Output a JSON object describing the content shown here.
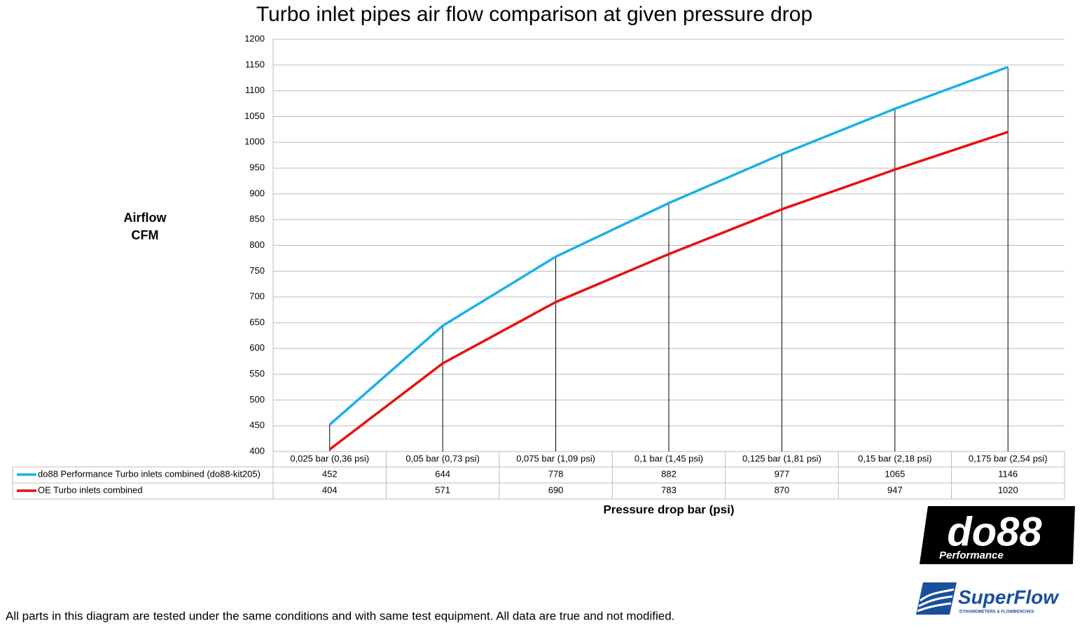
{
  "chart_data": {
    "type": "line",
    "title": "Turbo inlet pipes air flow comparison at given pressure drop",
    "ylabel": [
      "Airflow",
      "CFM"
    ],
    "xlabel": "Pressure drop bar (psi)",
    "categories": [
      "0,025 bar (0,36 psi)",
      "0,05 bar (0,73 psi)",
      "0,075 bar (1,09 psi)",
      "0,1 bar (1,45 psi)",
      "0,125 bar (1,81 psi)",
      "0,15 bar (2,18 psi)",
      "0,175 bar (2,54 psi)"
    ],
    "series": [
      {
        "name": "do88 Performance Turbo inlets combined (do88-kit205)",
        "color": "#1ab0e8",
        "values": [
          452,
          644,
          778,
          882,
          977,
          1065,
          1146
        ]
      },
      {
        "name": "OE Turbo inlets combined",
        "color": "#e8100e",
        "values": [
          404,
          571,
          690,
          783,
          870,
          947,
          1020
        ]
      }
    ],
    "ylim": [
      400,
      1200
    ],
    "yticks": [
      400,
      450,
      500,
      550,
      600,
      650,
      700,
      750,
      800,
      850,
      900,
      950,
      1000,
      1050,
      1100,
      1150,
      1200
    ],
    "grid": true,
    "data_table": true
  },
  "footnote": "All parts in this diagram are tested under the same conditions and with same test equipment. All data are true and not modified.",
  "logos": {
    "do88": "do88",
    "do88_sub": "Performance",
    "superflow": "SuperFlow",
    "superflow_sub": "DYNAMOMETERS & FLOWBENCHES"
  }
}
